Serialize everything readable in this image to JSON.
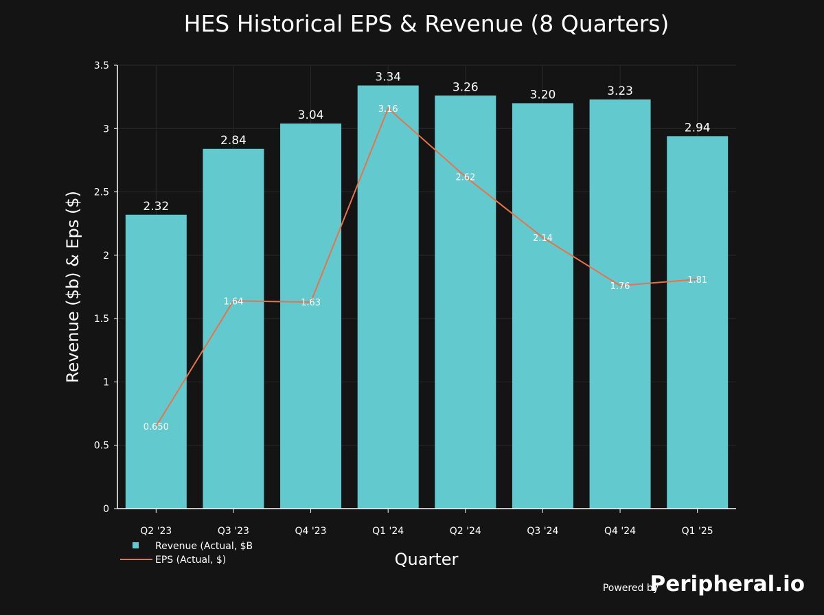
{
  "chart_data": {
    "type": "bar",
    "title": "HES Historical EPS & Revenue (8 Quarters)",
    "xlabel": "Quarter",
    "ylabel": "Revenue ($b) & Eps ($)",
    "ylim": [
      0,
      3.5
    ],
    "yticks": [
      0,
      0.5,
      1,
      1.5,
      2,
      2.5,
      3,
      3.5
    ],
    "ytick_labels": [
      "0",
      "0.5",
      "1",
      "1.5",
      "2",
      "2.5",
      "3",
      "3.5"
    ],
    "categories": [
      "Q2 '23",
      "Q3 '23",
      "Q4 '23",
      "Q1 '24",
      "Q2 '24",
      "Q3 '24",
      "Q4 '24",
      "Q1 '25"
    ],
    "grid": true,
    "legend_position": "bottom-left",
    "series": [
      {
        "name": "Revenue (Actual, $B",
        "type": "bar",
        "color": "#62c9ce",
        "values": [
          2.32,
          2.84,
          3.04,
          3.34,
          3.26,
          3.2,
          3.23,
          2.94
        ],
        "labels": [
          "2.32",
          "2.84",
          "3.04",
          "3.34",
          "3.26",
          "3.20",
          "3.23",
          "2.94"
        ]
      },
      {
        "name": "EPS (Actual, $)",
        "type": "line",
        "color": "#e8734a",
        "values": [
          0.65,
          1.64,
          1.63,
          3.16,
          2.62,
          2.14,
          1.76,
          1.81
        ],
        "labels": [
          "0.650",
          "1.64",
          "1.63",
          "3.16",
          "2.62",
          "2.14",
          "1.76",
          "1.81"
        ]
      }
    ]
  },
  "branding": {
    "powered_by": "Powered by",
    "brand": "Peripheral.io"
  },
  "colors": {
    "background": "#141414",
    "grid": "#2a2a2a",
    "axis": "#ffffff",
    "text": "#ffffff"
  }
}
